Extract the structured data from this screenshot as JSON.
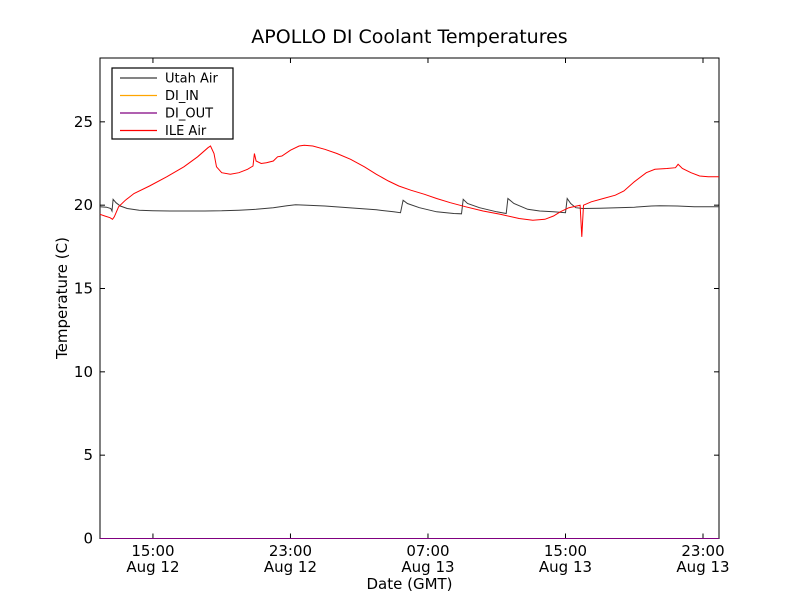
{
  "title": "APOLLO DI Coolant Temperatures",
  "chart_data": {
    "type": "line",
    "title": "APOLLO DI Coolant Temperatures",
    "xlabel": "Date (GMT)",
    "ylabel": "Temperature (C)",
    "x_unit": "hours since Aug 12 00:00 GMT",
    "xlim": [
      11.92,
      47.93
    ],
    "ylim": [
      0,
      28.83
    ],
    "grid": false,
    "legend_position": "upper left",
    "y_ticks": [
      0,
      5,
      10,
      15,
      20,
      25
    ],
    "x_ticks": [
      {
        "value": 15,
        "time": "15:00",
        "date": "Aug 12"
      },
      {
        "value": 23,
        "time": "23:00",
        "date": "Aug 12"
      },
      {
        "value": 31,
        "time": "07:00",
        "date": "Aug 13"
      },
      {
        "value": 39,
        "time": "15:00",
        "date": "Aug 13"
      },
      {
        "value": 47,
        "time": "23:00",
        "date": "Aug 13"
      }
    ],
    "series": [
      {
        "name": "Utah Air",
        "color": "#3b3b3b",
        "points": [
          [
            11.92,
            19.9
          ],
          [
            12.3,
            19.88
          ],
          [
            12.55,
            19.8
          ],
          [
            12.62,
            19.65
          ],
          [
            12.68,
            20.35
          ],
          [
            12.85,
            20.15
          ],
          [
            13.1,
            19.95
          ],
          [
            13.5,
            19.8
          ],
          [
            14.2,
            19.7
          ],
          [
            15,
            19.67
          ],
          [
            16,
            19.65
          ],
          [
            17,
            19.65
          ],
          [
            18,
            19.65
          ],
          [
            19,
            19.66
          ],
          [
            19.5,
            19.68
          ],
          [
            20,
            19.7
          ],
          [
            21,
            19.75
          ],
          [
            22,
            19.85
          ],
          [
            22.8,
            19.97
          ],
          [
            23.3,
            20.02
          ],
          [
            24,
            20.0
          ],
          [
            25,
            19.95
          ],
          [
            26,
            19.88
          ],
          [
            27,
            19.8
          ],
          [
            28,
            19.72
          ],
          [
            29,
            19.6
          ],
          [
            29.4,
            19.55
          ],
          [
            29.55,
            20.3
          ],
          [
            29.8,
            20.1
          ],
          [
            30.5,
            19.85
          ],
          [
            31.5,
            19.6
          ],
          [
            32.5,
            19.5
          ],
          [
            32.95,
            19.48
          ],
          [
            33.05,
            20.35
          ],
          [
            33.3,
            20.1
          ],
          [
            34,
            19.85
          ],
          [
            35,
            19.6
          ],
          [
            35.55,
            19.5
          ],
          [
            35.65,
            20.4
          ],
          [
            36,
            20.1
          ],
          [
            36.8,
            19.75
          ],
          [
            37.5,
            19.65
          ],
          [
            38.3,
            19.6
          ],
          [
            39,
            19.55
          ],
          [
            39.1,
            20.4
          ],
          [
            39.3,
            20.1
          ],
          [
            39.6,
            19.85
          ],
          [
            40,
            19.8
          ],
          [
            41,
            19.82
          ],
          [
            42,
            19.85
          ],
          [
            43,
            19.88
          ],
          [
            44,
            19.95
          ],
          [
            44.5,
            19.97
          ],
          [
            45.5,
            19.95
          ],
          [
            46.5,
            19.9
          ],
          [
            47.93,
            19.9
          ]
        ]
      },
      {
        "name": "DI_IN",
        "color": "#ffa500",
        "points": [
          [
            11.92,
            0
          ],
          [
            47.93,
            0
          ]
        ]
      },
      {
        "name": "DI_OUT",
        "color": "#800080",
        "points": [
          [
            11.92,
            0
          ],
          [
            47.93,
            0
          ]
        ]
      },
      {
        "name": "ILE Air",
        "color": "#ff0000",
        "points": [
          [
            11.92,
            19.45
          ],
          [
            12.2,
            19.35
          ],
          [
            12.5,
            19.25
          ],
          [
            12.65,
            19.15
          ],
          [
            12.75,
            19.3
          ],
          [
            13.0,
            19.9
          ],
          [
            13.4,
            20.3
          ],
          [
            13.9,
            20.7
          ],
          [
            14.8,
            21.15
          ],
          [
            15.8,
            21.7
          ],
          [
            16.8,
            22.3
          ],
          [
            17.6,
            22.9
          ],
          [
            18.2,
            23.45
          ],
          [
            18.35,
            23.55
          ],
          [
            18.55,
            23.1
          ],
          [
            18.7,
            22.3
          ],
          [
            19.0,
            21.95
          ],
          [
            19.5,
            21.85
          ],
          [
            20.0,
            21.95
          ],
          [
            20.5,
            22.15
          ],
          [
            20.82,
            22.35
          ],
          [
            20.9,
            23.1
          ],
          [
            21.0,
            22.65
          ],
          [
            21.3,
            22.5
          ],
          [
            21.6,
            22.55
          ],
          [
            22.0,
            22.65
          ],
          [
            22.25,
            22.9
          ],
          [
            22.5,
            22.95
          ],
          [
            23.0,
            23.3
          ],
          [
            23.5,
            23.55
          ],
          [
            23.8,
            23.6
          ],
          [
            24.3,
            23.55
          ],
          [
            25.0,
            23.35
          ],
          [
            25.7,
            23.1
          ],
          [
            26.5,
            22.75
          ],
          [
            27.3,
            22.3
          ],
          [
            28.0,
            21.85
          ],
          [
            28.7,
            21.45
          ],
          [
            29.3,
            21.15
          ],
          [
            30.0,
            20.9
          ],
          [
            30.8,
            20.65
          ],
          [
            31.5,
            20.4
          ],
          [
            32.3,
            20.15
          ],
          [
            33.2,
            19.9
          ],
          [
            34.2,
            19.65
          ],
          [
            35.2,
            19.45
          ],
          [
            36.3,
            19.2
          ],
          [
            37.1,
            19.1
          ],
          [
            37.8,
            19.15
          ],
          [
            38.3,
            19.35
          ],
          [
            38.7,
            19.6
          ],
          [
            39.2,
            19.85
          ],
          [
            39.85,
            20.0
          ],
          [
            39.95,
            18.1
          ],
          [
            40.05,
            20.0
          ],
          [
            40.5,
            20.2
          ],
          [
            41.2,
            20.4
          ],
          [
            41.9,
            20.6
          ],
          [
            42.4,
            20.85
          ],
          [
            43.0,
            21.4
          ],
          [
            43.7,
            21.95
          ],
          [
            44.2,
            22.15
          ],
          [
            44.9,
            22.2
          ],
          [
            45.4,
            22.25
          ],
          [
            45.55,
            22.45
          ],
          [
            45.8,
            22.2
          ],
          [
            46.3,
            21.95
          ],
          [
            46.8,
            21.75
          ],
          [
            47.3,
            21.7
          ],
          [
            47.93,
            21.7
          ]
        ]
      }
    ]
  }
}
